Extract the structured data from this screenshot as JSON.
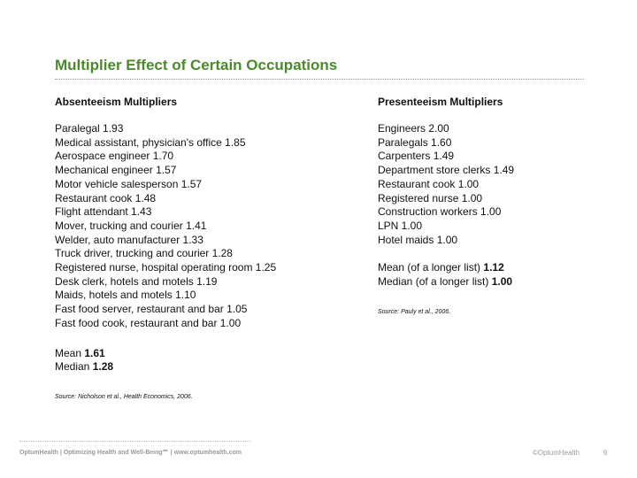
{
  "slide": {
    "title": "Multiplier Effect of Certain Occupations",
    "absenteeism": {
      "heading": "Absenteeism Multipliers",
      "items": [
        "Paralegal 1.93",
        "Medical assistant, physician's office 1.85",
        "Aerospace engineer 1.70",
        "Mechanical engineer 1.57",
        "Motor vehicle salesperson 1.57",
        "Restaurant cook 1.48",
        "Flight attendant 1.43",
        "Mover, trucking and courier 1.41",
        "Welder, auto manufacturer 1.33",
        "Truck driver, trucking and courier 1.28",
        "Registered nurse, hospital operating room 1.25",
        "Desk clerk, hotels and motels 1.19",
        "Maids, hotels and motels 1.10",
        "Fast food server, restaurant and bar 1.05",
        "Fast food cook, restaurant and bar 1.00"
      ],
      "mean_label": "Mean",
      "mean_value": "1.61",
      "median_label": "Median",
      "median_value": "1.28",
      "source": "Source: Nicholson et al., Health Economics, 2006."
    },
    "presenteeism": {
      "heading": "Presenteeism Multipliers",
      "items": [
        "Engineers 2.00",
        "Paralegals 1.60",
        "Carpenters 1.49",
        "Department store clerks 1.49",
        "Restaurant cook 1.00",
        "Registered nurse 1.00",
        "Construction workers 1.00",
        "LPN 1.00",
        "Hotel maids 1.00"
      ],
      "mean_label": "Mean (of a longer list)",
      "mean_value": "1.12",
      "median_label": "Median (of a longer list)",
      "median_value": "1.00",
      "source": "Source: Pauly et al., 2006."
    }
  },
  "footer": {
    "text": "OptumHealth | Optimizing Health and Well-Being℠ | www.optumhealth.com",
    "logo": "©OptumHealth",
    "page": "6"
  }
}
